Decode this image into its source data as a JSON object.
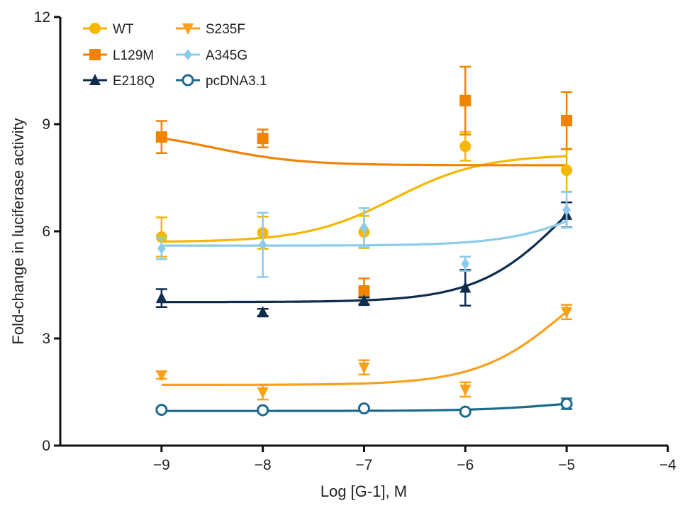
{
  "chart_data": {
    "type": "scatter",
    "xlabel": "Log [G-1], M",
    "ylabel": "Fold-change in luciferase activity",
    "xlim": [
      -10,
      -4
    ],
    "ylim": [
      0,
      12
    ],
    "xticks": [
      -9,
      -8,
      -7,
      -6,
      -5,
      -4
    ],
    "yticks": [
      0,
      3,
      6,
      9,
      12
    ],
    "xtick_labels": [
      "−9",
      "−8",
      "−7",
      "−6",
      "−5",
      "−4"
    ],
    "ytick_labels": [
      "0",
      "3",
      "6",
      "9",
      "12"
    ],
    "grid": false,
    "legend_placement": "top-left",
    "x": [
      -9,
      -8,
      -7,
      -6,
      -5
    ],
    "series": [
      {
        "name": "WT",
        "color": "#F5B700",
        "marker": "circle",
        "values": [
          5.84,
          5.96,
          5.98,
          8.38,
          7.71
        ],
        "errors": [
          0.55,
          0.45,
          0.45,
          0.4,
          0.6
        ],
        "fit": {
          "bottom": 5.7,
          "top": 8.15,
          "logEC50": -6.7,
          "hill": 1
        }
      },
      {
        "name": "L129M",
        "color": "#F08300",
        "marker": "square",
        "values": [
          8.64,
          8.6,
          4.33,
          9.66,
          9.1
        ],
        "errors": [
          0.45,
          0.25,
          0.35,
          0.95,
          0.8
        ],
        "fit": {
          "bottom": 8.85,
          "top": 7.85,
          "logEC50": -8.5,
          "hill": 1
        }
      },
      {
        "name": "E218Q",
        "color": "#0E2C4E",
        "marker": "triangle-up",
        "values": [
          4.13,
          3.73,
          4.05,
          4.42,
          6.46
        ],
        "errors": [
          0.25,
          0.1,
          0.1,
          0.5,
          0.35
        ],
        "fit": {
          "bottom": 4.02,
          "top": 8.9,
          "logEC50": -5,
          "hill": 1
        }
      },
      {
        "name": "S235F",
        "color": "#F9A11B",
        "marker": "triangle-down",
        "values": [
          1.97,
          1.49,
          2.19,
          1.57,
          3.74
        ],
        "errors": [
          0.1,
          0.2,
          0.2,
          0.2,
          0.2
        ],
        "fit": {
          "bottom": 1.7,
          "top": 5.8,
          "logEC50": -5,
          "hill": 1
        }
      },
      {
        "name": "A345G",
        "color": "#8DCBEB",
        "marker": "diamond",
        "values": [
          5.52,
          5.62,
          6.1,
          5.09,
          6.6
        ],
        "errors": [
          0.3,
          0.9,
          0.55,
          0.2,
          0.5
        ],
        "fit": {
          "bottom": 5.6,
          "top": 8.0,
          "logEC50": -4.6,
          "hill": 1
        }
      },
      {
        "name": "pcDNA3.1",
        "color": "#1D6A8C",
        "marker": "circle-open",
        "values": [
          1.0,
          0.99,
          1.04,
          0.95,
          1.17
        ],
        "errors": [
          0.05,
          0.05,
          0.05,
          0.05,
          0.15
        ],
        "fit": {
          "bottom": 0.97,
          "top": 1.37,
          "logEC50": -5,
          "hill": 1
        }
      }
    ]
  }
}
